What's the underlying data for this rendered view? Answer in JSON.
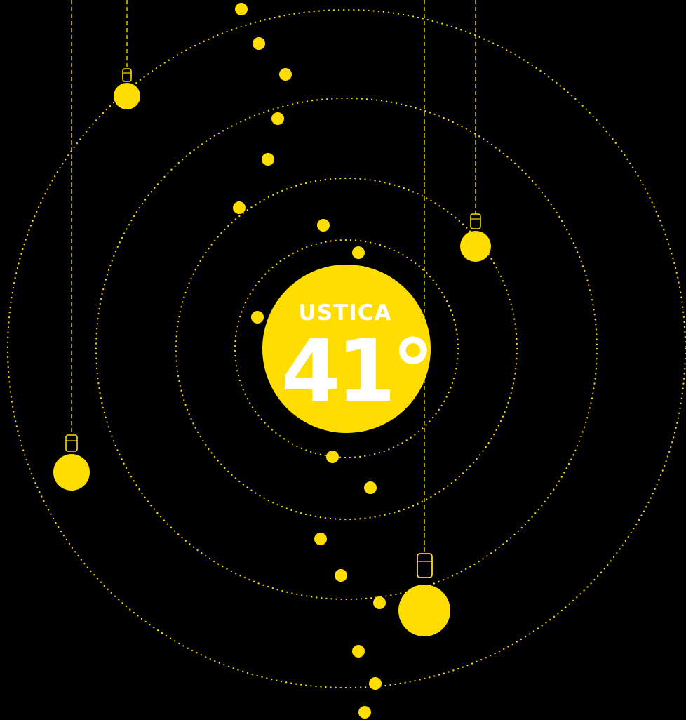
{
  "poster": {
    "title_word": "USTICA",
    "title_number": "41°"
  },
  "colors": {
    "background": "#000000",
    "accent": "#FFDD00",
    "center_text": "#FFFFFF"
  },
  "icons": {
    "bulb": "hanging-light-bulb-icon"
  }
}
